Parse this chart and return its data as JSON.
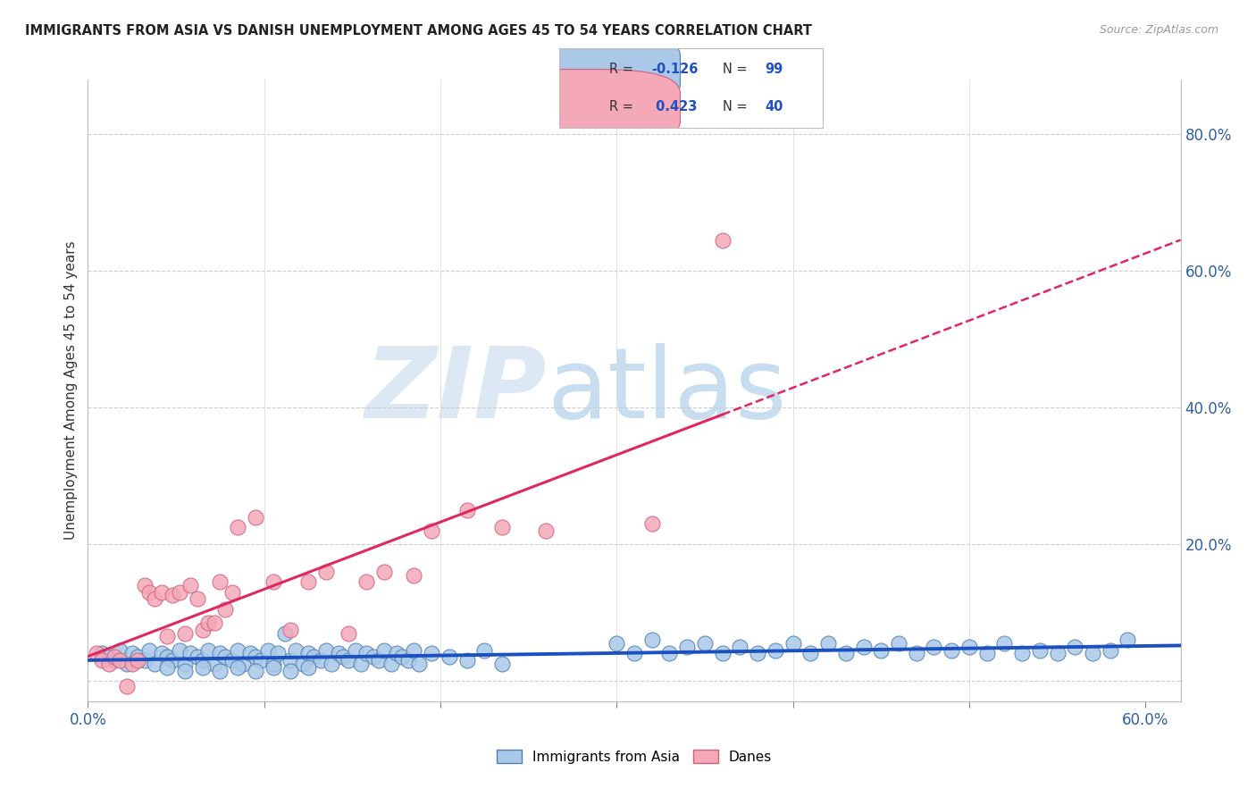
{
  "title": "IMMIGRANTS FROM ASIA VS DANISH UNEMPLOYMENT AMONG AGES 45 TO 54 YEARS CORRELATION CHART",
  "source": "Source: ZipAtlas.com",
  "ylabel": "Unemployment Among Ages 45 to 54 years",
  "xlim": [
    0.0,
    0.62
  ],
  "ylim": [
    -0.03,
    0.88
  ],
  "color_blue": "#aac8e8",
  "color_pink": "#f4a8b8",
  "color_blue_edge": "#5080b0",
  "color_pink_edge": "#d06080",
  "color_blue_line": "#1a50c0",
  "color_pink_line": "#e02860",
  "watermark_zip_color": "#dce8f4",
  "watermark_atlas_color": "#c8ddf0",
  "blue_R": "-0.126",
  "blue_N": "99",
  "pink_R": "0.423",
  "pink_N": "40",
  "blue_scatter_x": [
    0.008,
    0.012,
    0.015,
    0.018,
    0.022,
    0.025,
    0.028,
    0.032,
    0.035,
    0.038,
    0.042,
    0.045,
    0.048,
    0.052,
    0.055,
    0.058,
    0.062,
    0.065,
    0.068,
    0.072,
    0.075,
    0.078,
    0.082,
    0.085,
    0.088,
    0.092,
    0.095,
    0.098,
    0.102,
    0.105,
    0.108,
    0.112,
    0.115,
    0.118,
    0.122,
    0.125,
    0.128,
    0.132,
    0.135,
    0.138,
    0.142,
    0.145,
    0.148,
    0.152,
    0.155,
    0.158,
    0.162,
    0.165,
    0.168,
    0.172,
    0.175,
    0.178,
    0.182,
    0.185,
    0.188,
    0.195,
    0.205,
    0.215,
    0.225,
    0.235,
    0.3,
    0.31,
    0.32,
    0.33,
    0.34,
    0.35,
    0.36,
    0.37,
    0.38,
    0.39,
    0.4,
    0.41,
    0.42,
    0.43,
    0.44,
    0.45,
    0.46,
    0.47,
    0.48,
    0.49,
    0.5,
    0.51,
    0.52,
    0.53,
    0.54,
    0.55,
    0.56,
    0.57,
    0.58,
    0.59,
    0.045,
    0.055,
    0.065,
    0.075,
    0.085,
    0.095,
    0.105,
    0.115,
    0.125
  ],
  "blue_scatter_y": [
    0.04,
    0.035,
    0.03,
    0.045,
    0.025,
    0.04,
    0.035,
    0.03,
    0.045,
    0.025,
    0.04,
    0.035,
    0.03,
    0.045,
    0.025,
    0.04,
    0.035,
    0.03,
    0.045,
    0.025,
    0.04,
    0.035,
    0.03,
    0.045,
    0.025,
    0.04,
    0.035,
    0.03,
    0.045,
    0.025,
    0.04,
    0.07,
    0.03,
    0.045,
    0.025,
    0.04,
    0.035,
    0.03,
    0.045,
    0.025,
    0.04,
    0.035,
    0.03,
    0.045,
    0.025,
    0.04,
    0.035,
    0.03,
    0.045,
    0.025,
    0.04,
    0.035,
    0.03,
    0.045,
    0.025,
    0.04,
    0.035,
    0.03,
    0.045,
    0.025,
    0.055,
    0.04,
    0.06,
    0.04,
    0.05,
    0.055,
    0.04,
    0.05,
    0.04,
    0.045,
    0.055,
    0.04,
    0.055,
    0.04,
    0.05,
    0.045,
    0.055,
    0.04,
    0.05,
    0.045,
    0.05,
    0.04,
    0.055,
    0.04,
    0.045,
    0.04,
    0.05,
    0.04,
    0.045,
    0.06,
    0.02,
    0.015,
    0.02,
    0.015,
    0.02,
    0.015,
    0.02,
    0.015,
    0.02
  ],
  "pink_scatter_x": [
    0.005,
    0.008,
    0.012,
    0.015,
    0.018,
    0.022,
    0.025,
    0.028,
    0.032,
    0.035,
    0.038,
    0.042,
    0.045,
    0.048,
    0.052,
    0.055,
    0.058,
    0.062,
    0.065,
    0.068,
    0.072,
    0.075,
    0.078,
    0.082,
    0.085,
    0.095,
    0.105,
    0.115,
    0.125,
    0.135,
    0.148,
    0.158,
    0.168,
    0.185,
    0.195,
    0.215,
    0.235,
    0.26,
    0.32,
    0.36
  ],
  "pink_scatter_y": [
    0.04,
    0.03,
    0.025,
    0.035,
    0.03,
    -0.008,
    0.025,
    0.03,
    0.14,
    0.13,
    0.12,
    0.13,
    0.065,
    0.125,
    0.13,
    0.07,
    0.14,
    0.12,
    0.075,
    0.085,
    0.085,
    0.145,
    0.105,
    0.13,
    0.225,
    0.24,
    0.145,
    0.075,
    0.145,
    0.16,
    0.07,
    0.145,
    0.16,
    0.155,
    0.22,
    0.25,
    0.225,
    0.22,
    0.23,
    0.645
  ]
}
